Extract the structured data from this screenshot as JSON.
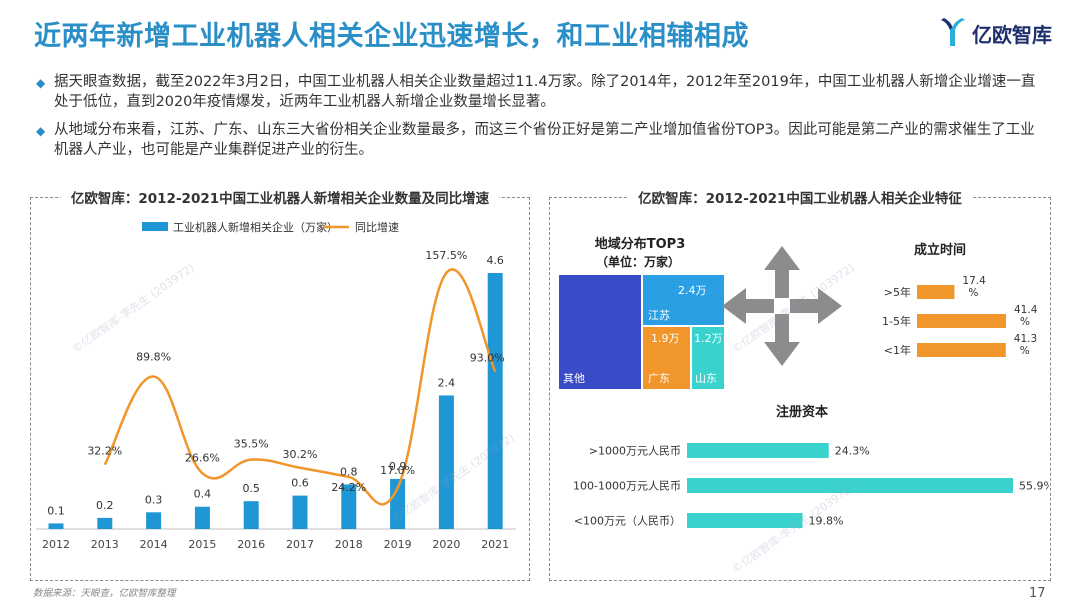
{
  "title": "近两年新增工业机器人相关企业迅速增长，和工业相辅相成",
  "logo": {
    "text": "亿欧智库",
    "icon": "yiou-logo-icon"
  },
  "bullets": [
    "据天眼查数据，截至2022年3月2日，中国工业机器人相关企业数量超过11.4万家。除了2014年，2012年至2019年，中国工业机器人新增企业增速一直处于低位，直到2020年疫情爆发，近两年工业机器人新增企业数量增长显著。",
    "从地域分布来看，江苏、广东、山东三大省份相关企业数量最多，而这三个省份正好是第二产业增加值省份TOP3。因此可能是第二产业的需求催生了工业机器人产业，也可能是产业集群促进产业的衍生。"
  ],
  "bullet_icon": "diamond-bullet-icon",
  "footer": {
    "source": "数据来源：天眼查，亿欧智库整理",
    "page": "17"
  },
  "watermark": "©亿欧智库-李先生 (203972)",
  "colors": {
    "title": "#2a8fc7",
    "bar": "#1f97d4",
    "line": "#f0962a",
    "teal": "#39d2cf",
    "navy": "#3a4bc8",
    "orange": "#f0962a",
    "sky": "#2a9fe3"
  },
  "chart_data": [
    {
      "type": "bar",
      "title": "亿欧智库：2012-2021中国工业机器人新增相关企业数量及同比增速",
      "categories": [
        "2012",
        "2013",
        "2014",
        "2015",
        "2016",
        "2017",
        "2018",
        "2019",
        "2020",
        "2021"
      ],
      "series": [
        {
          "name": "工业机器人新增相关企业（万家）",
          "type": "bar",
          "values": [
            0.1,
            0.2,
            0.3,
            0.4,
            0.5,
            0.6,
            0.8,
            0.9,
            2.4,
            4.6
          ],
          "labels": [
            "0.1",
            "0.2",
            "0.3",
            "0.4",
            "0.5",
            "0.6",
            "0.8",
            "0.9",
            "2.4",
            "4.6"
          ]
        },
        {
          "name": "同比增速",
          "type": "line",
          "values": [
            null,
            32.2,
            89.8,
            26.6,
            35.5,
            30.2,
            24.2,
            17.0,
            157.5,
            93.0
          ],
          "labels": [
            "",
            "32.2%",
            "89.8%",
            "26.6%",
            "35.5%",
            "30.2%",
            "24.2%",
            "17.0%",
            "157.5%",
            "93.0%"
          ]
        }
      ],
      "ylim_bar": [
        0,
        4.6
      ],
      "ylim_line": [
        0,
        160
      ],
      "grid": false,
      "legend": "top-center"
    },
    {
      "type": "treemap",
      "title": "地域分布TOP3",
      "subtitle": "（单位：万家）",
      "items": [
        {
          "name": "其他",
          "value": null,
          "label": ""
        },
        {
          "name": "江苏",
          "value": 2.4,
          "label": "2.4万"
        },
        {
          "name": "广东",
          "value": 1.9,
          "label": "1.9万"
        },
        {
          "name": "山东",
          "value": 1.2,
          "label": "1.2万"
        }
      ]
    },
    {
      "type": "bar",
      "orientation": "horizontal",
      "title": "成立时间",
      "categories": [
        ">5年",
        "1-5年",
        "<1年"
      ],
      "values": [
        17.4,
        41.4,
        41.3
      ],
      "labels": [
        "17.4%",
        "41.4%",
        "41.3%"
      ],
      "xlim": [
        0,
        41.4
      ]
    },
    {
      "type": "bar",
      "orientation": "horizontal",
      "title": "注册资本",
      "categories": [
        ">1000万元人民币",
        "100-1000万元人民币",
        "<100万元（人民币）"
      ],
      "values": [
        24.3,
        55.9,
        19.8
      ],
      "labels": [
        "24.3%",
        "55.9%",
        "19.8%"
      ],
      "xlim": [
        0,
        55.9
      ]
    }
  ],
  "right_panel_title": "亿欧智库：2012-2021中国工业机器人相关企业特征",
  "arrows_icon": "four-way-arrows-icon"
}
